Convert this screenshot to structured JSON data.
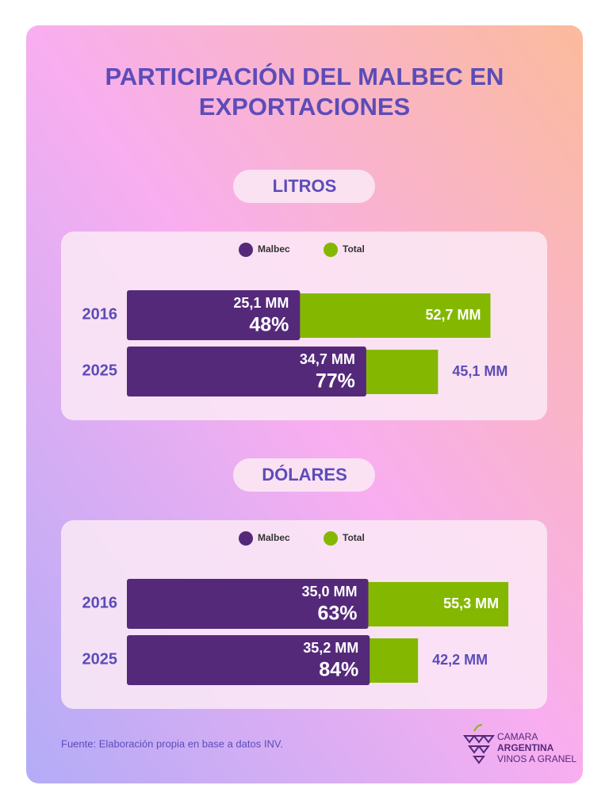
{
  "header": {
    "title": "PARTICIPACIÓN DEL MALBEC EN EXPORTACIONES"
  },
  "chart_data": [
    {
      "type": "bar",
      "title": "LITROS",
      "categories": [
        "2016",
        "2025"
      ],
      "series": [
        {
          "name": "Malbec",
          "color": "#55297a",
          "values": [
            25.1,
            34.7
          ],
          "value_labels": [
            "25,1 MM",
            "34,7 MM"
          ],
          "shares": [
            48,
            77
          ],
          "share_labels": [
            "48%",
            "77%"
          ]
        },
        {
          "name": "Total",
          "color": "#84b800",
          "values": [
            52.7,
            45.1
          ],
          "value_labels": [
            "52,7 MM",
            "45,1 MM"
          ]
        }
      ]
    },
    {
      "type": "bar",
      "title": "DÓLARES",
      "categories": [
        "2016",
        "2025"
      ],
      "series": [
        {
          "name": "Malbec",
          "color": "#55297a",
          "values": [
            35.0,
            35.2
          ],
          "value_labels": [
            "35,0 MM",
            "35,2 MM"
          ],
          "shares": [
            63,
            84
          ],
          "share_labels": [
            "63%",
            "84%"
          ]
        },
        {
          "name": "Total",
          "color": "#84b800",
          "values": [
            55.3,
            42.2
          ],
          "value_labels": [
            "55,3 MM",
            "42,2 MM"
          ]
        }
      ]
    }
  ],
  "footer": {
    "source": "Fuente: Elaboración propia en base a datos INV.",
    "logo": [
      "CAMARA",
      "ARGENTINA",
      "VINOS A GRANEL"
    ]
  }
}
